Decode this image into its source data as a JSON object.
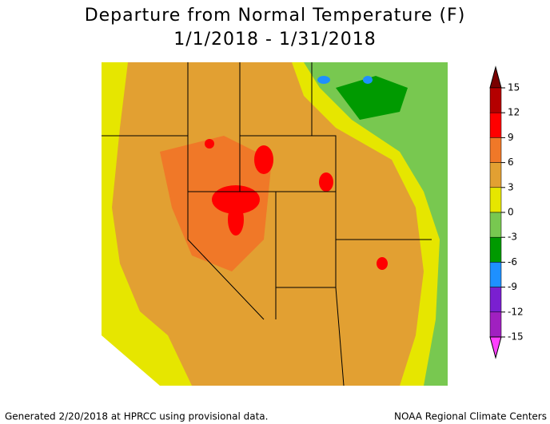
{
  "title": "Departure from Normal Temperature (F)",
  "subtitle": "1/1/2018 - 1/31/2018",
  "legend": {
    "ticks": [
      15,
      12,
      9,
      6,
      3,
      0,
      -3,
      -6,
      -9,
      -12,
      -15
    ],
    "colors": [
      "#7a0000",
      "#b40000",
      "#ff0000",
      "#f07828",
      "#e2a032",
      "#e6e600",
      "#78c850",
      "#009a00",
      "#1e90ff",
      "#7a1fd0",
      "#a020c0",
      "#ff40ff"
    ]
  },
  "footer": {
    "left": "Generated 2/20/2018 at HPRCC using provisional data.",
    "right": "NOAA Regional Climate Centers"
  }
}
